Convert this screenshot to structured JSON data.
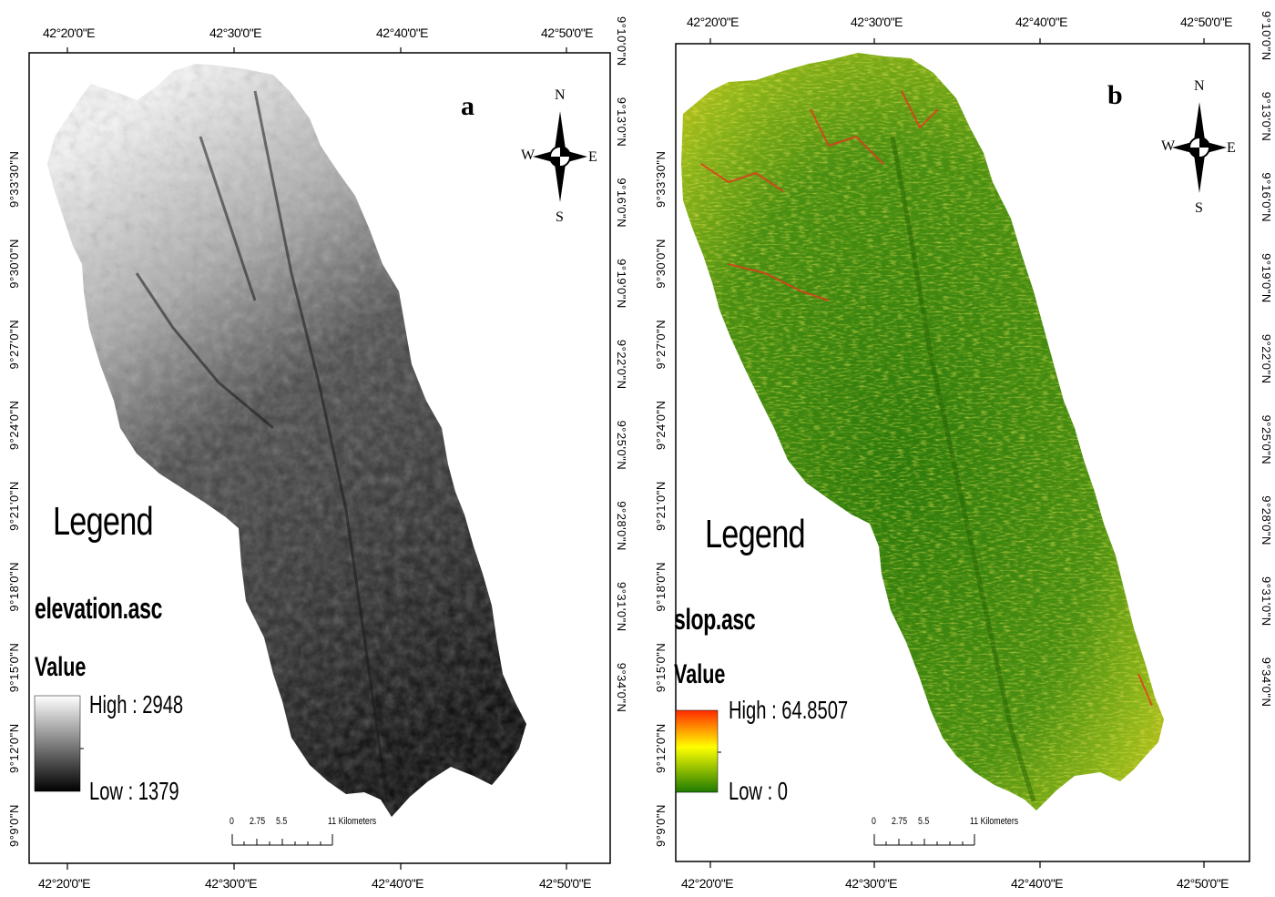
{
  "panels": [
    {
      "letter": "a",
      "lon_top": [
        "42°20'0\"E",
        "42°30'0\"E",
        "42°40'0\"E",
        "42°50'0\"E"
      ],
      "lon_bottom": [
        "42°20'0\"E",
        "42°30'0\"E",
        "42°40'0\"E",
        "42°50'0\"E"
      ],
      "lat_left": "9°9'0\"N 9°12'0\"N 9°15'0\"N 9°18'0\"N 9°21'0\"N 9°24'0\"N 9°27'0\"N 9°30'0\"N 9°33'30\"N",
      "lat_right": "9°10'0\"N 9°13'0\"N 9°16'0\"N 9°19'0\"N 9°22'0\"N 9°25'0\"N 9°28'0\"N 9°31'0\"N 9°34'0\"N",
      "legend_title": "Legend",
      "layer_name": "elevation.asc",
      "value_label": "Value",
      "high_label": "High : 2948",
      "low_label": "Low : 1379",
      "ramp_colors": [
        "#ffffff",
        "#000000"
      ],
      "compass": {
        "n": "N",
        "s": "S",
        "e": "E",
        "w": "W"
      },
      "scale": {
        "ticks": [
          "0",
          "2.75",
          "5.5",
          "11 Kilometers"
        ]
      }
    },
    {
      "letter": "b",
      "lon_top": [
        "42°20'0\"E",
        "42°30'0\"E",
        "42°40'0\"E",
        "42°50'0\"E"
      ],
      "lon_bottom": [
        "42°20'0\"E",
        "42°30'0\"E",
        "42°40'0\"E",
        "42°50'0\"E"
      ],
      "lat_left": "9°9'0\"N 9°12'0\"N 9°15'0\"N 9°18'0\"N 9°21'0\"N 9°24'0\"N 9°27'0\"N 9°30'0\"N 9°33'30\"N",
      "lat_right": "9°10'0\"N 9°13'0\"N 9°16'0\"N 9°19'0\"N 9°22'0\"N 9°25'0\"N 9°28'0\"N 9°31'0\"N 9°34'0\"N",
      "legend_title": "Legend",
      "layer_name": "slop.asc",
      "value_label": "Value",
      "high_label": "High : 64.8507",
      "low_label": "Low : 0",
      "ramp_colors": [
        "#ff2a00",
        "#ffff00",
        "#1e7a00"
      ],
      "compass": {
        "n": "N",
        "s": "S",
        "e": "E",
        "w": "W"
      },
      "scale": {
        "ticks": [
          "0",
          "2.75",
          "5.5",
          "11 Kilometers"
        ]
      }
    }
  ]
}
